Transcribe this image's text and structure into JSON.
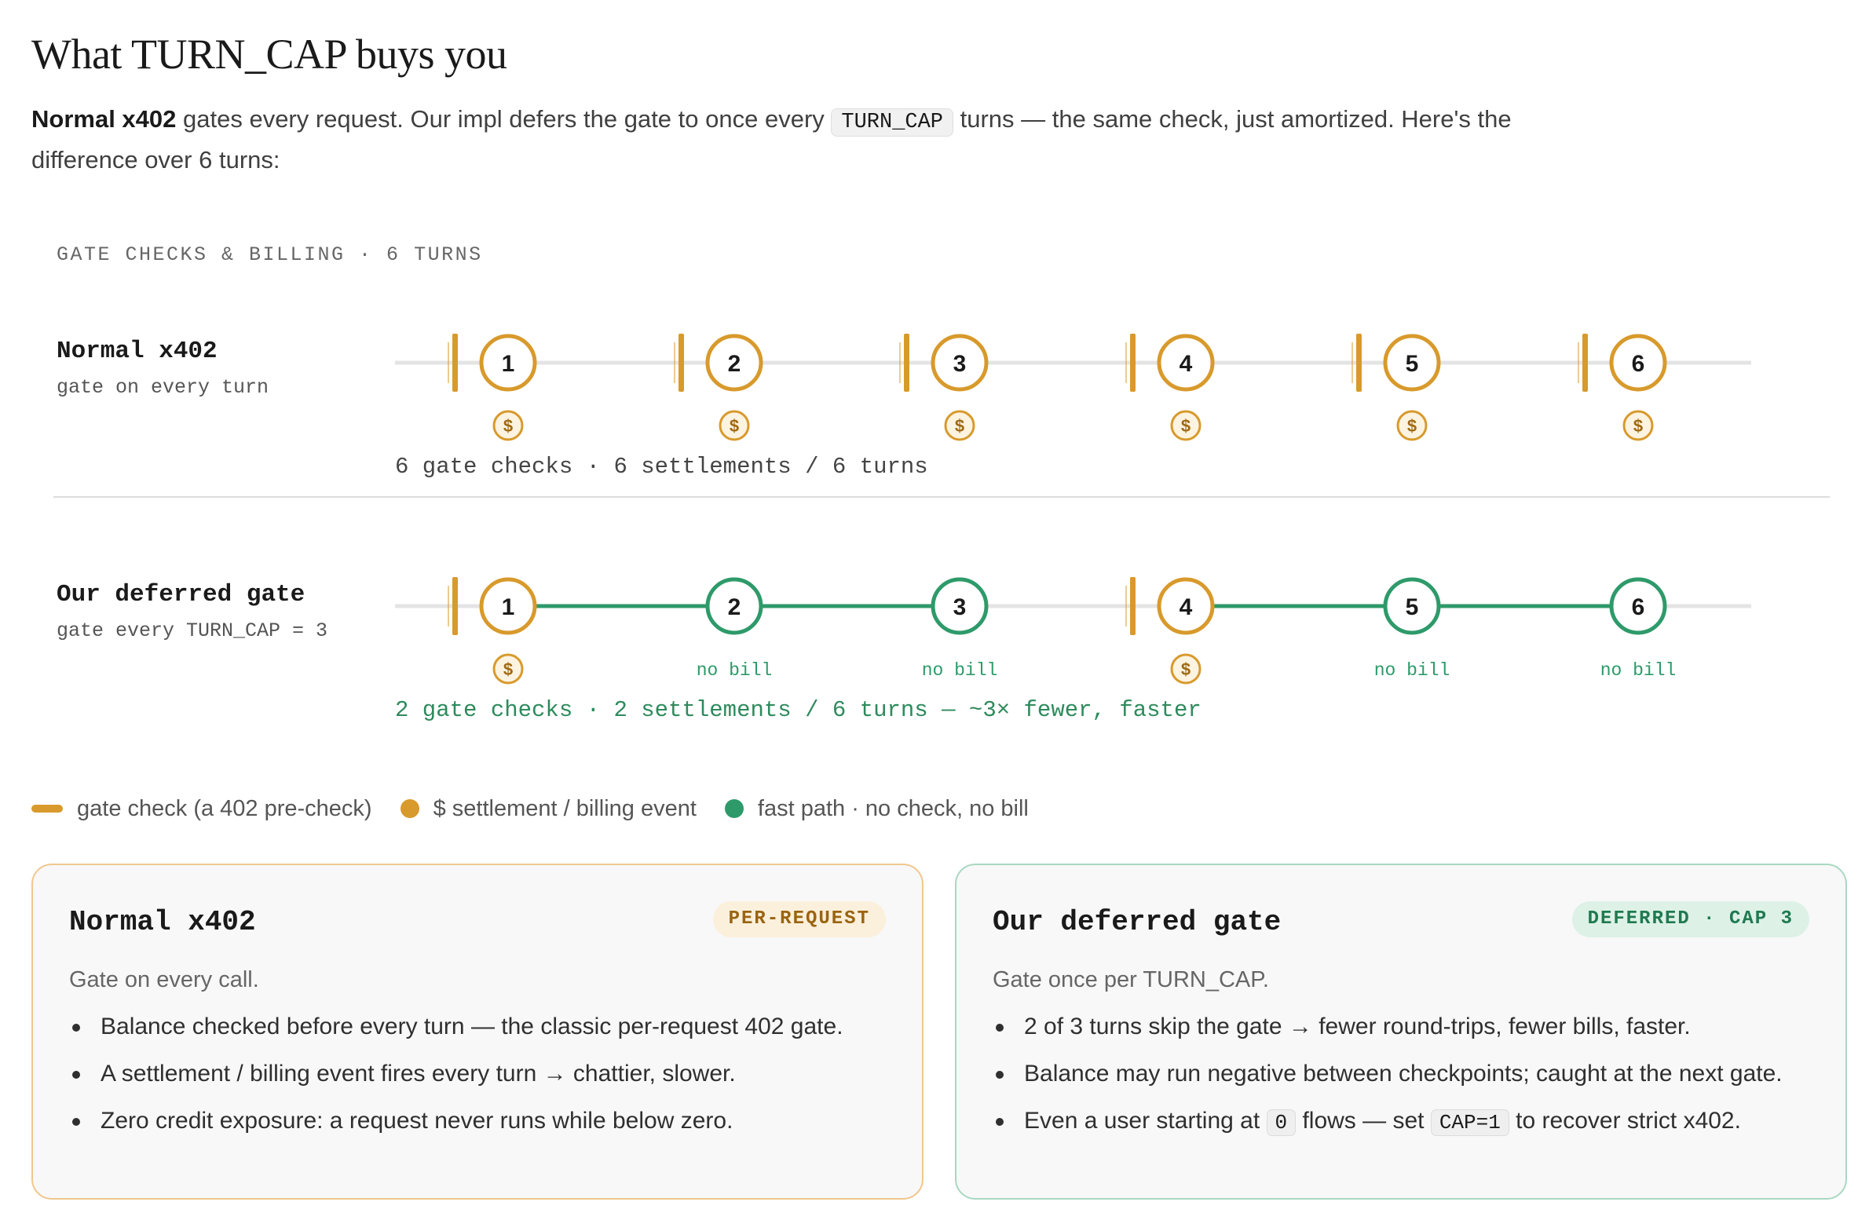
{
  "header": {
    "title": "What TURN_CAP buys you",
    "intro_bold": "Normal x402",
    "intro_a": " gates every request. Our impl defers the gate to once every ",
    "intro_code": "TURN_CAP",
    "intro_b": " turns — the same check, just amortized. Here's the difference over 6 turns:"
  },
  "colors": {
    "amber": "#d89a2c",
    "green": "#2e9a6a",
    "track": "#e4e4e4",
    "summary_green": "#2e8a5c"
  },
  "diagram": {
    "caption": "GATE CHECKS & BILLING · 6 TURNS",
    "rows": [
      {
        "id": "normal",
        "title": "Normal x402",
        "subtitle": "gate on every turn",
        "summary": "6 gate checks · 6 settlements / 6 turns",
        "turns": [
          {
            "n": "1",
            "gate": true,
            "billed": true
          },
          {
            "n": "2",
            "gate": true,
            "billed": true
          },
          {
            "n": "3",
            "gate": true,
            "billed": true
          },
          {
            "n": "4",
            "gate": true,
            "billed": true
          },
          {
            "n": "5",
            "gate": true,
            "billed": true
          },
          {
            "n": "6",
            "gate": true,
            "billed": true
          }
        ]
      },
      {
        "id": "deferred",
        "title": "Our deferred gate",
        "subtitle": "gate every TURN_CAP = 3",
        "summary": "2 gate checks · 2 settlements / 6 turns — ~3× fewer, faster",
        "turns": [
          {
            "n": "1",
            "gate": true,
            "billed": true
          },
          {
            "n": "2",
            "gate": false,
            "billed": false
          },
          {
            "n": "3",
            "gate": false,
            "billed": false
          },
          {
            "n": "4",
            "gate": true,
            "billed": true
          },
          {
            "n": "5",
            "gate": false,
            "billed": false
          },
          {
            "n": "6",
            "gate": false,
            "billed": false
          }
        ]
      }
    ],
    "coin_glyph": "$",
    "no_bill_label": "no bill"
  },
  "legend": {
    "gate_check": "gate check (a 402 pre-check)",
    "settlement": "$ settlement / billing event",
    "fast_path": "fast path · no check, no bill"
  },
  "cards": {
    "normal": {
      "title": "Normal x402",
      "badge": "PER-REQUEST",
      "subtitle": "Gate on every call.",
      "bullets": [
        "Balance checked before every turn — the classic per-request 402 gate.",
        "A settlement / billing event fires every turn → chattier, slower.",
        "Zero credit exposure: a request never runs while below zero."
      ]
    },
    "deferred": {
      "title": "Our deferred gate",
      "badge": "DEFERRED · CAP 3",
      "subtitle": "Gate once per TURN_CAP.",
      "bullet1": "2 of 3 turns skip the gate → fewer round-trips, fewer bills, faster.",
      "bullet2": "Balance may run negative between checkpoints; caught at the next gate.",
      "bullet3_a": "Even a user starting at ",
      "bullet3_code1": "0",
      "bullet3_b": " flows — set ",
      "bullet3_code2": "CAP=1",
      "bullet3_c": " to recover strict x402."
    }
  }
}
